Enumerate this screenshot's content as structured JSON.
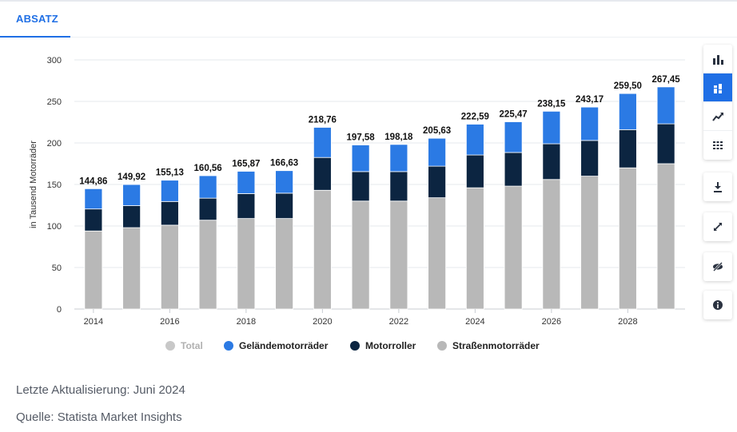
{
  "tabs": {
    "active_label": "ABSATZ"
  },
  "chart_data": {
    "type": "bar",
    "stacked": true,
    "title": "",
    "xlabel": "",
    "ylabel": "in Tausend Motorräder",
    "ylim": [
      0,
      300
    ],
    "yticks": [
      0,
      50,
      100,
      150,
      200,
      250,
      300
    ],
    "xticks": [
      "2014",
      "2016",
      "2018",
      "2020",
      "2022",
      "2024",
      "2026",
      "2028"
    ],
    "categories": [
      "2014",
      "2015",
      "2016",
      "2017",
      "2018",
      "2019",
      "2020",
      "2021",
      "2022",
      "2023",
      "2024",
      "2025",
      "2026",
      "2027",
      "2028",
      "2029"
    ],
    "totals_labels": [
      "144,86",
      "149,92",
      "155,13",
      "160,56",
      "165,87",
      "166,63",
      "218,76",
      "197,58",
      "198,18",
      "205,63",
      "222,59",
      "225,47",
      "238,15",
      "243,17",
      "259,50",
      "267,45"
    ],
    "series": [
      {
        "name": "Straßenmotorräder",
        "color": "#b8b8b8",
        "values": [
          94,
          98,
          101,
          107,
          109,
          109,
          143,
          130,
          130,
          134,
          146,
          148,
          156,
          160,
          170,
          175
        ]
      },
      {
        "name": "Motorroller",
        "color": "#0c2541",
        "values": [
          26.5,
          26.5,
          28.5,
          26.5,
          30,
          30.5,
          39.5,
          35.5,
          35.5,
          38,
          39.5,
          40.5,
          43,
          43,
          46,
          48
        ]
      },
      {
        "name": "Geländemotorräder",
        "color": "#2b7ae4",
        "values": [
          24.36,
          25.42,
          25.63,
          27.06,
          26.87,
          27.13,
          36.26,
          32.08,
          32.68,
          33.63,
          37.09,
          36.97,
          39.15,
          40.17,
          43.5,
          44.45
        ]
      }
    ],
    "legend": [
      {
        "name": "Total",
        "color": "#c8c8c8",
        "text_color": "#b0b0b0"
      },
      {
        "name": "Geländemotorräder",
        "color": "#2b7ae4",
        "text_color": "#222222"
      },
      {
        "name": "Motorroller",
        "color": "#0c2541",
        "text_color": "#222222"
      },
      {
        "name": "Straßenmotorräder",
        "color": "#b8b8b8",
        "text_color": "#222222"
      }
    ]
  },
  "toolbar": {
    "icons": [
      "bar-chart-icon",
      "stacked-bar-icon",
      "trend-line-icon",
      "table-grid-icon",
      "download-icon",
      "fullscreen-icon",
      "hide-icon",
      "info-icon"
    ]
  },
  "footer": {
    "last_update": "Letzte Aktualisierung: Juni 2024",
    "source": "Quelle: Statista Market Insights"
  }
}
